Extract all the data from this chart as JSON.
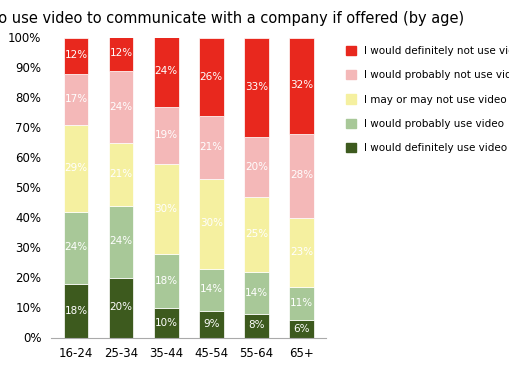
{
  "title": "Likelihood to use video to communicate with a company if offered (by age)",
  "categories": [
    "16-24",
    "25-34",
    "35-44",
    "45-54",
    "55-64",
    "65+"
  ],
  "series": [
    {
      "label": "I would definitely use video",
      "color": "#3d5a1e",
      "values": [
        18,
        20,
        10,
        9,
        8,
        6
      ]
    },
    {
      "label": "I would probably use video",
      "color": "#a8c898",
      "values": [
        24,
        24,
        18,
        14,
        14,
        11
      ]
    },
    {
      "label": "I may or may not use video",
      "color": "#f5f0a0",
      "values": [
        29,
        21,
        30,
        30,
        25,
        23
      ]
    },
    {
      "label": "I would probably not use video",
      "color": "#f4b8b8",
      "values": [
        17,
        24,
        19,
        21,
        20,
        28
      ]
    },
    {
      "label": "I would definitely not use video",
      "color": "#e8281e",
      "values": [
        12,
        12,
        24,
        26,
        33,
        32
      ]
    }
  ],
  "ylim": [
    0,
    100
  ],
  "yticks": [
    0,
    10,
    20,
    30,
    40,
    50,
    60,
    70,
    80,
    90,
    100
  ],
  "ytick_labels": [
    "0%",
    "10%",
    "20%",
    "30%",
    "40%",
    "50%",
    "60%",
    "70%",
    "80%",
    "90%",
    "100%"
  ],
  "background_color": "#ffffff",
  "bar_width": 0.55,
  "title_fontsize": 10.5,
  "legend_fontsize": 7.5,
  "tick_fontsize": 8.5,
  "label_fontsize": 7.5
}
